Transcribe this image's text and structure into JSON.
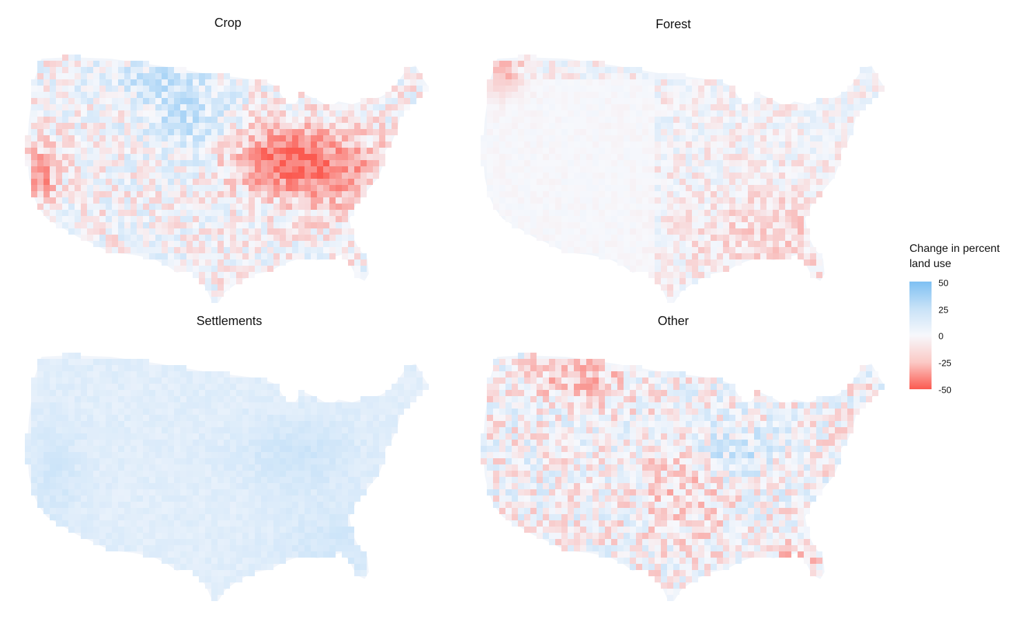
{
  "panels": [
    {
      "title": "Crop",
      "scheme": "crop"
    },
    {
      "title": "Forest",
      "scheme": "forest"
    },
    {
      "title": "Settlements",
      "scheme": "settlements"
    },
    {
      "title": "Other",
      "scheme": "other"
    }
  ],
  "legend": {
    "title_line1": "Change in percent",
    "title_line2": "land use",
    "ticks": [
      "50",
      "25",
      "0",
      "-25",
      "-50"
    ],
    "colors": {
      "high": "#7ec0f3",
      "mid": "#f7f8fc",
      "low": "#fb5a50"
    },
    "range": [
      -50,
      50
    ]
  }
}
